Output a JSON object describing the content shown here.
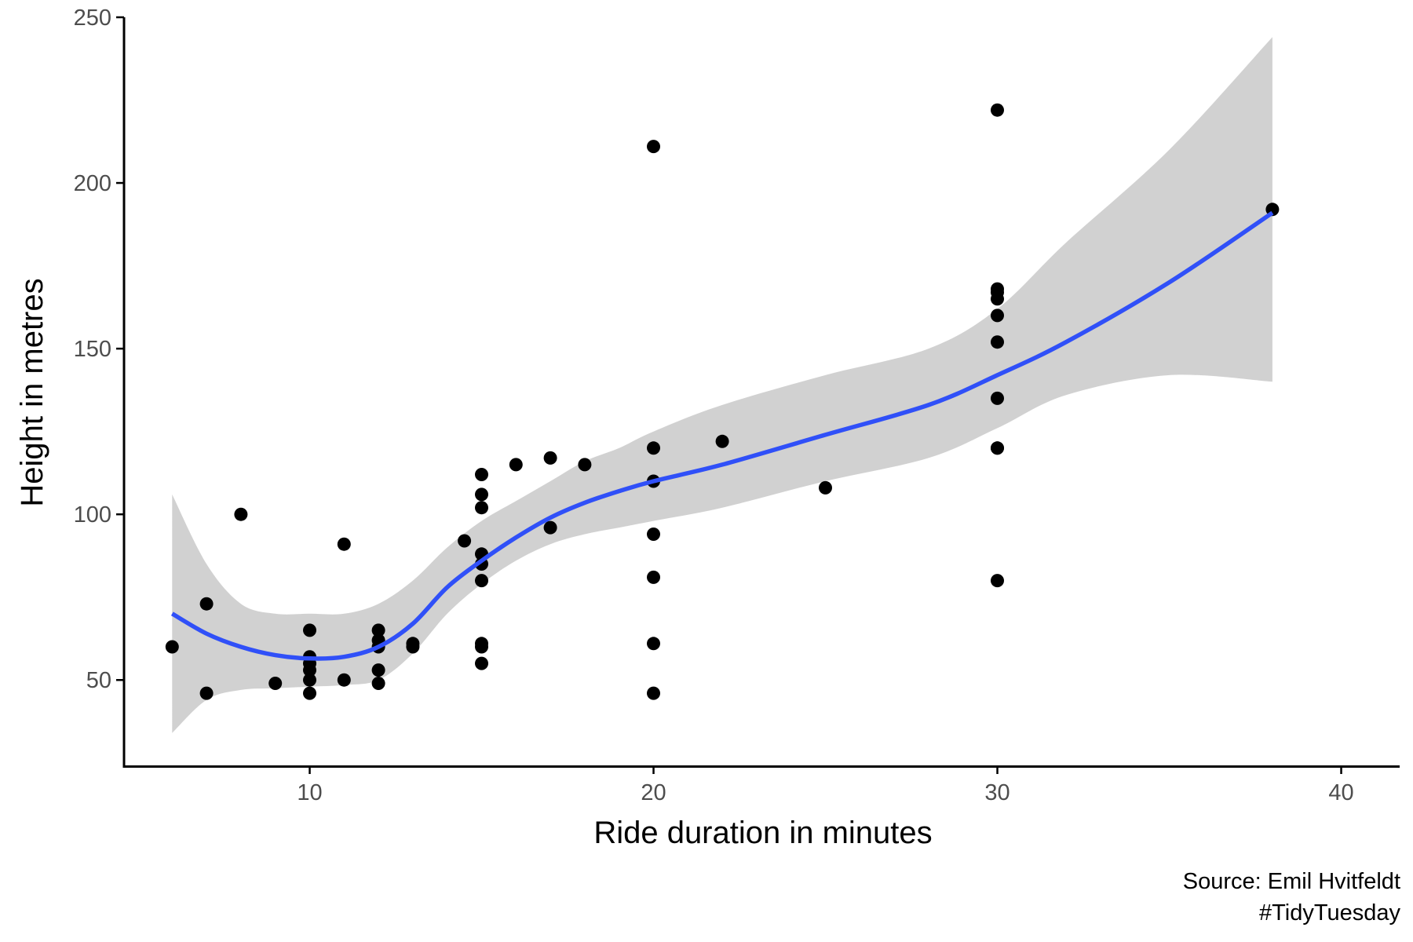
{
  "chart_data": {
    "type": "scatter",
    "xlabel": "Ride duration in minutes",
    "ylabel": "Height in metres",
    "xlim": [
      4.6,
      41.7
    ],
    "ylim": [
      24,
      250
    ],
    "x_ticks": [
      10,
      20,
      30,
      40
    ],
    "y_ticks": [
      50,
      100,
      150,
      200,
      250
    ],
    "grid": false,
    "legend": "none",
    "point_color": "#000000",
    "smooth_color": "#3050f8",
    "band_color": "#cccccc",
    "caption": [
      "Source: Emil Hvitfeldt",
      "#TidyTuesday"
    ],
    "points": [
      [
        6,
        60
      ],
      [
        7,
        73
      ],
      [
        7,
        46
      ],
      [
        8,
        100
      ],
      [
        9,
        49
      ],
      [
        10,
        65
      ],
      [
        10,
        57
      ],
      [
        10,
        55
      ],
      [
        10,
        53
      ],
      [
        10,
        50
      ],
      [
        10,
        46
      ],
      [
        11,
        91
      ],
      [
        11,
        50
      ],
      [
        12,
        65
      ],
      [
        12,
        62
      ],
      [
        12,
        60
      ],
      [
        12,
        53
      ],
      [
        12,
        49
      ],
      [
        13,
        61
      ],
      [
        13,
        60
      ],
      [
        14.5,
        92
      ],
      [
        15,
        112
      ],
      [
        15,
        106
      ],
      [
        15,
        102
      ],
      [
        15,
        88
      ],
      [
        15,
        85
      ],
      [
        15,
        80
      ],
      [
        15,
        61
      ],
      [
        15,
        60
      ],
      [
        15,
        55
      ],
      [
        16,
        115
      ],
      [
        17,
        117
      ],
      [
        17,
        96
      ],
      [
        18,
        115
      ],
      [
        20,
        211
      ],
      [
        20,
        120
      ],
      [
        20,
        110
      ],
      [
        20,
        94
      ],
      [
        20,
        81
      ],
      [
        20,
        61
      ],
      [
        20,
        46
      ],
      [
        22,
        122
      ],
      [
        25,
        108
      ],
      [
        30,
        222
      ],
      [
        30,
        168
      ],
      [
        30,
        167
      ],
      [
        30,
        165
      ],
      [
        30,
        160
      ],
      [
        30,
        152
      ],
      [
        30,
        135
      ],
      [
        30,
        120
      ],
      [
        30,
        120
      ],
      [
        30,
        80
      ],
      [
        38,
        192
      ]
    ],
    "smooth": {
      "x": [
        6,
        7,
        8,
        9,
        10,
        11,
        12,
        13,
        14,
        15,
        16,
        17,
        18,
        19,
        20,
        22,
        25,
        28,
        30,
        32,
        35,
        38
      ],
      "y": [
        70,
        64,
        60,
        57.5,
        56.5,
        57,
        60,
        67,
        78,
        86,
        93,
        99,
        103.5,
        107,
        110,
        115,
        124,
        133,
        142,
        152,
        170,
        191
      ],
      "lower": [
        34,
        44,
        47,
        47.5,
        48,
        48.5,
        50,
        58,
        70,
        79,
        86,
        91,
        94,
        96,
        98,
        102,
        110,
        117,
        126,
        136,
        142,
        140
      ],
      "upper": [
        106,
        85,
        73,
        70,
        70,
        70,
        73,
        80,
        90,
        98,
        104,
        110,
        116,
        120,
        125,
        133,
        142,
        150,
        162,
        182,
        210,
        244
      ]
    }
  }
}
